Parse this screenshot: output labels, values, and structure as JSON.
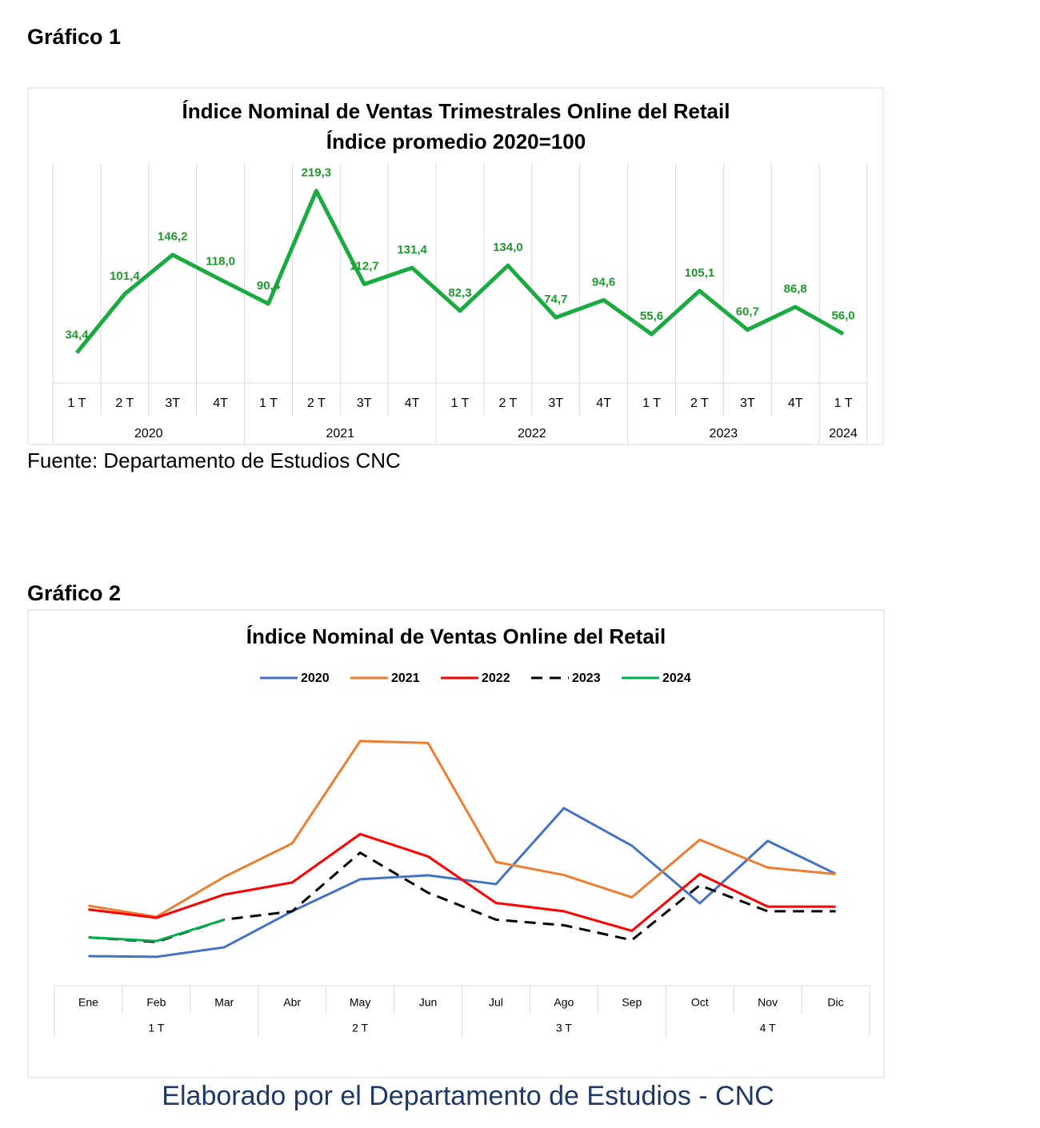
{
  "heading_1": "Gráfico 1",
  "source": "Fuente: Departamento de Estudios CNC",
  "heading_2": "Gráfico 2",
  "footer": "Elaborado por el Departamento de Estudios - CNC",
  "chart_data": [
    {
      "type": "line",
      "title": "Índice Nominal de Ventas Trimestrales Online del Retail",
      "subtitle": "Índice promedio 2020=100",
      "groups": [
        {
          "name": "2020",
          "categories": [
            "1 T",
            "2 T",
            "3T",
            "4T"
          ]
        },
        {
          "name": "2021",
          "categories": [
            "1 T",
            "2 T",
            "3T",
            "4T"
          ]
        },
        {
          "name": "2022",
          "categories": [
            "1 T",
            "2 T",
            "3T",
            "4T"
          ]
        },
        {
          "name": "2023",
          "categories": [
            "1 T",
            "2 T",
            "3T",
            "4T"
          ]
        },
        {
          "name": "2024",
          "categories": [
            "1 T"
          ]
        }
      ],
      "values": [
        34.4,
        101.4,
        146.2,
        118.0,
        90.4,
        219.3,
        112.7,
        131.4,
        82.3,
        134.0,
        74.7,
        94.6,
        55.6,
        105.1,
        60.7,
        86.8,
        56.0
      ],
      "value_labels": [
        "34,4",
        "101,4",
        "146,2",
        "118,0",
        "90,4",
        "219,3",
        "112,7",
        "131,4",
        "82,3",
        "134,0",
        "74,7",
        "94,6",
        "55,6",
        "105,1",
        "60,7",
        "86,8",
        "56,0"
      ],
      "color": "#1aab40",
      "ylim": [
        0,
        250
      ]
    },
    {
      "type": "line",
      "title": "Índice Nominal de Ventas Online del Retail",
      "groups": [
        {
          "name": "1 T",
          "categories": [
            "Ene",
            "Feb",
            "Mar"
          ]
        },
        {
          "name": "2 T",
          "categories": [
            "Abr",
            "May",
            "Jun"
          ]
        },
        {
          "name": "3 T",
          "categories": [
            "Jul",
            "Ago",
            "Sep"
          ]
        },
        {
          "name": "4 T",
          "categories": [
            "Oct",
            "Nov",
            "Dic"
          ]
        }
      ],
      "series": [
        {
          "name": "2020",
          "color": "#4472c4",
          "values": [
            31.8,
            31,
            41.3,
            80,
            114.4,
            118.7,
            109.2,
            190.9,
            150.5,
            88.6,
            155.7,
            120.4
          ]
        },
        {
          "name": "2021",
          "color": "#ed7d31",
          "values": [
            86,
            74,
            117,
            153,
            263,
            261,
            133,
            119,
            95,
            157,
            127,
            120
          ]
        },
        {
          "name": "2022",
          "color": "#ff0000",
          "values": [
            82,
            73,
            98,
            111,
            163,
            139,
            89,
            80,
            59,
            120,
            85,
            85
          ]
        },
        {
          "name": "2023",
          "color": "#000000",
          "dashed": true,
          "values": [
            52,
            47,
            71,
            80,
            143,
            100,
            71,
            65,
            49,
            108,
            80,
            80
          ]
        },
        {
          "name": "2024",
          "color": "#00b050",
          "values": [
            52,
            48,
            71,
            null,
            null,
            null,
            null,
            null,
            null,
            null,
            null,
            null
          ]
        }
      ],
      "ylim": [
        0,
        312
      ],
      "legend": "top"
    }
  ]
}
